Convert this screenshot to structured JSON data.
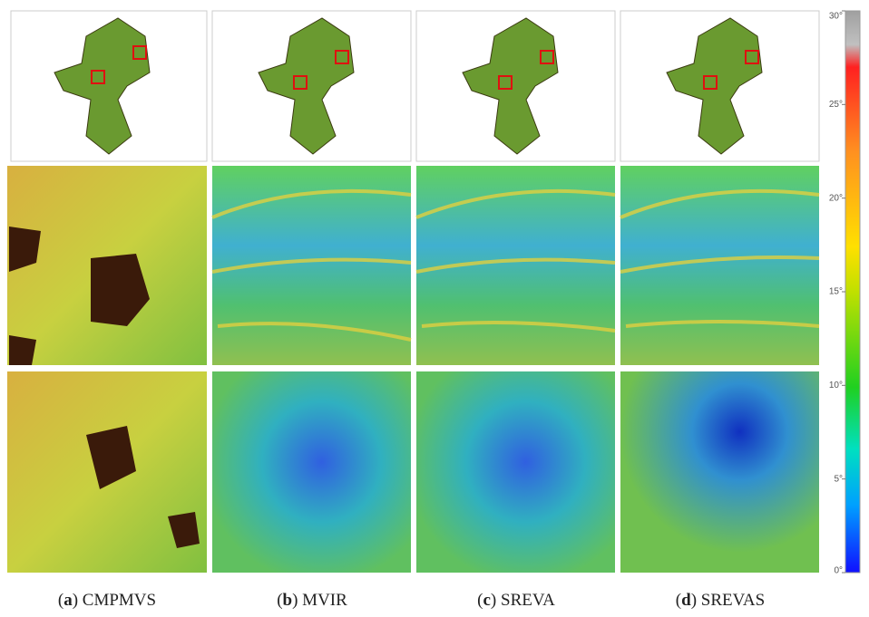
{
  "panels": {
    "captions": [
      {
        "open": "(",
        "letter": "a",
        "rest": ") CMPMVS"
      },
      {
        "open": "(",
        "letter": "b",
        "rest": ") MVIR"
      },
      {
        "open": "(",
        "letter": "c",
        "rest": ") SREVA"
      },
      {
        "open": "(",
        "letter": "d",
        "rest": ") SREVAS"
      }
    ]
  },
  "colorbar": {
    "lim": [
      0,
      30
    ],
    "ticks": [
      {
        "value": 0,
        "label": "0°"
      },
      {
        "value": 5,
        "label": "5°"
      },
      {
        "value": 10,
        "label": "10°"
      },
      {
        "value": 15,
        "label": "15°"
      },
      {
        "value": 20,
        "label": "20°"
      },
      {
        "value": 25,
        "label": "25°"
      },
      {
        "value": 30,
        "label": "30°"
      }
    ]
  }
}
